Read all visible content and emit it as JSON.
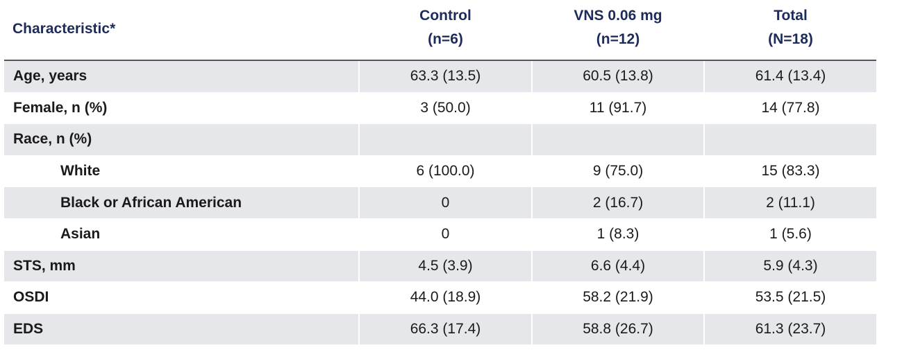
{
  "header": {
    "characteristic": "Characteristic*",
    "columns": [
      {
        "title": "Control",
        "n": "(n=6)"
      },
      {
        "title": "VNS 0.06 mg",
        "n": "(n=12)"
      },
      {
        "title": "Total",
        "n": "(N=18)"
      }
    ]
  },
  "table": {
    "rows": [
      {
        "label": "Age, years",
        "values": [
          "63.3 (13.5)",
          "60.5 (13.8)",
          "61.4 (13.4)"
        ]
      },
      {
        "label": "Female, n (%)",
        "values": [
          "3 (50.0)",
          "11 (91.7)",
          "14 (77.8)"
        ]
      },
      {
        "label": "Race, n (%)",
        "subrows": [
          {
            "label": "White",
            "values": [
              "6 (100.0)",
              "9 (75.0)",
              "15 (83.3)"
            ]
          },
          {
            "label": "Black or African American",
            "values": [
              "0",
              "2 (16.7)",
              "2 (11.1)"
            ]
          },
          {
            "label": "Asian",
            "values": [
              "0",
              "1 (8.3)",
              "1 (5.6)"
            ]
          }
        ]
      },
      {
        "label": "STS, mm",
        "values": [
          "4.5 (3.9)",
          "6.6 (4.4)",
          "5.9 (4.3)"
        ]
      },
      {
        "label": "OSDI",
        "values": [
          "44.0 (18.9)",
          "58.2 (21.9)",
          "53.5 (21.5)"
        ]
      },
      {
        "label": "EDS",
        "values": [
          "66.3 (17.4)",
          "58.8 (26.7)",
          "61.3 (23.7)"
        ]
      }
    ]
  }
}
